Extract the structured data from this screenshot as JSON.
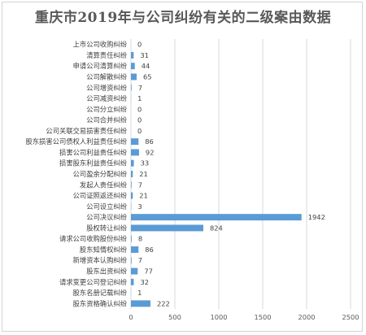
{
  "chart_data": {
    "type": "bar",
    "orientation": "horizontal",
    "title": "重庆市2019年与公司纠纷有关的二级案由数据",
    "xlabel": "",
    "ylabel": "",
    "xlim": [
      0,
      2500
    ],
    "xticks": [
      0,
      500,
      1000,
      1500,
      2000,
      2500
    ],
    "grid": true,
    "bar_color": "#5b9bd5",
    "categories": [
      "上市公司收购纠纷",
      "清算责任纠纷",
      "申请公司清算纠纷",
      "公司解散纠纷",
      "公司增资纠纷",
      "公司减资纠纷",
      "公司分立纠纷",
      "公司合并纠纷",
      "公司关联交易损害责任纠纷",
      "股东损害公司债权人利益责任纠纷",
      "损害公司利益责任纠纷",
      "损害股东利益责任纠纷",
      "公司盈余分配纠纷",
      "发起人责任纠纷",
      "公司证照返还纠纷",
      "公司设立纠纷",
      "公司决议纠纷",
      "股权转让纠纷",
      "请求公司收购股份纠纷",
      "股东知情权纠纷",
      "新增资本认购纠纷",
      "股东出资纠纷",
      "请求变更公司登记纠纷",
      "股东名册记载纠纷",
      "股东资格确认纠纷"
    ],
    "values": [
      0,
      31,
      44,
      65,
      7,
      1,
      0,
      0,
      0,
      86,
      92,
      33,
      21,
      7,
      21,
      3,
      1942,
      824,
      8,
      86,
      7,
      77,
      32,
      1,
      222
    ],
    "value_labels": [
      "0",
      "31",
      "44",
      "65",
      "7",
      "1",
      "0",
      "0",
      "0",
      "86",
      "92",
      "33",
      "21",
      "7",
      "21",
      "3",
      "1942",
      "824",
      "8",
      "86",
      "7",
      "77",
      "32",
      "1",
      "222"
    ]
  }
}
